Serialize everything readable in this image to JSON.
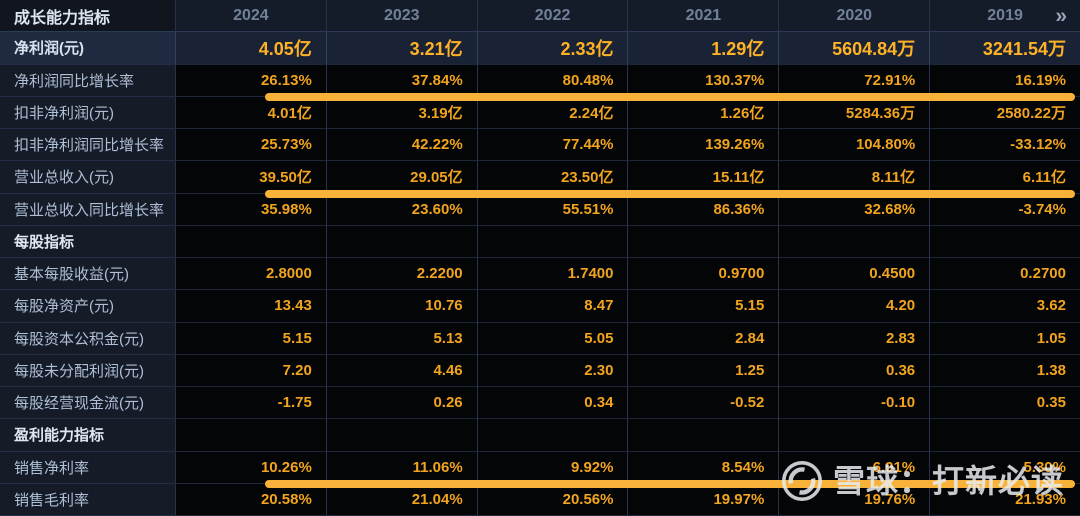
{
  "table": {
    "corner_label": "成长能力指标",
    "years": [
      "2024",
      "2023",
      "2022",
      "2021",
      "2020",
      "2019"
    ],
    "more_icon": "»",
    "rows": [
      {
        "label": "净利润(元)",
        "type": "highlight",
        "underline": false,
        "values": [
          "4.05亿",
          "3.21亿",
          "2.33亿",
          "1.29亿",
          "5604.84万",
          "3241.54万"
        ]
      },
      {
        "label": "净利润同比增长率",
        "type": "data",
        "underline": true,
        "values": [
          "26.13%",
          "37.84%",
          "80.48%",
          "130.37%",
          "72.91%",
          "16.19%"
        ]
      },
      {
        "label": "扣非净利润(元)",
        "type": "data",
        "underline": false,
        "values": [
          "4.01亿",
          "3.19亿",
          "2.24亿",
          "1.26亿",
          "5284.36万",
          "2580.22万"
        ]
      },
      {
        "label": "扣非净利润同比增长率",
        "type": "data",
        "underline": false,
        "values": [
          "25.73%",
          "42.22%",
          "77.44%",
          "139.26%",
          "104.80%",
          "-33.12%"
        ]
      },
      {
        "label": "营业总收入(元)",
        "type": "data",
        "underline": true,
        "values": [
          "39.50亿",
          "29.05亿",
          "23.50亿",
          "15.11亿",
          "8.11亿",
          "6.11亿"
        ]
      },
      {
        "label": "营业总收入同比增长率",
        "type": "data",
        "underline": false,
        "values": [
          "35.98%",
          "23.60%",
          "55.51%",
          "86.36%",
          "32.68%",
          "-3.74%"
        ]
      },
      {
        "label": "每股指标",
        "type": "section",
        "underline": false,
        "values": [
          "",
          "",
          "",
          "",
          "",
          ""
        ]
      },
      {
        "label": "基本每股收益(元)",
        "type": "data",
        "underline": false,
        "values": [
          "2.8000",
          "2.2200",
          "1.7400",
          "0.9700",
          "0.4500",
          "0.2700"
        ]
      },
      {
        "label": "每股净资产(元)",
        "type": "data",
        "underline": false,
        "values": [
          "13.43",
          "10.76",
          "8.47",
          "5.15",
          "4.20",
          "3.62"
        ]
      },
      {
        "label": "每股资本公积金(元)",
        "type": "data",
        "underline": false,
        "values": [
          "5.15",
          "5.13",
          "5.05",
          "2.84",
          "2.83",
          "1.05"
        ]
      },
      {
        "label": "每股未分配利润(元)",
        "type": "data",
        "underline": false,
        "values": [
          "7.20",
          "4.46",
          "2.30",
          "1.25",
          "0.36",
          "1.38"
        ]
      },
      {
        "label": "每股经营现金流(元)",
        "type": "data",
        "underline": false,
        "values": [
          "-1.75",
          "0.26",
          "0.34",
          "-0.52",
          "-0.10",
          "0.35"
        ]
      },
      {
        "label": "盈利能力指标",
        "type": "section",
        "underline": false,
        "values": [
          "",
          "",
          "",
          "",
          "",
          ""
        ]
      },
      {
        "label": "销售净利率",
        "type": "data",
        "underline": true,
        "values": [
          "10.26%",
          "11.06%",
          "9.92%",
          "8.54%",
          "6.91%",
          "5.30%"
        ]
      },
      {
        "label": "销售毛利率",
        "type": "data",
        "underline": false,
        "values": [
          "20.58%",
          "21.04%",
          "20.56%",
          "19.97%",
          "19.76%",
          "21.93%"
        ]
      }
    ]
  },
  "watermark": {
    "logo": "xueqiu-logo",
    "text": "雪球：打新必读"
  },
  "colors": {
    "value_orange": "#f2a41e",
    "highlight_value_orange": "#ffb224",
    "annotation_bar": "#f8b23a",
    "label_text": "#aebfd6",
    "year_header_text": "#72819a",
    "highlight_row_bg": "#1a2336",
    "label_column_bg": "#151b27",
    "value_cell_bg": "#030507"
  }
}
